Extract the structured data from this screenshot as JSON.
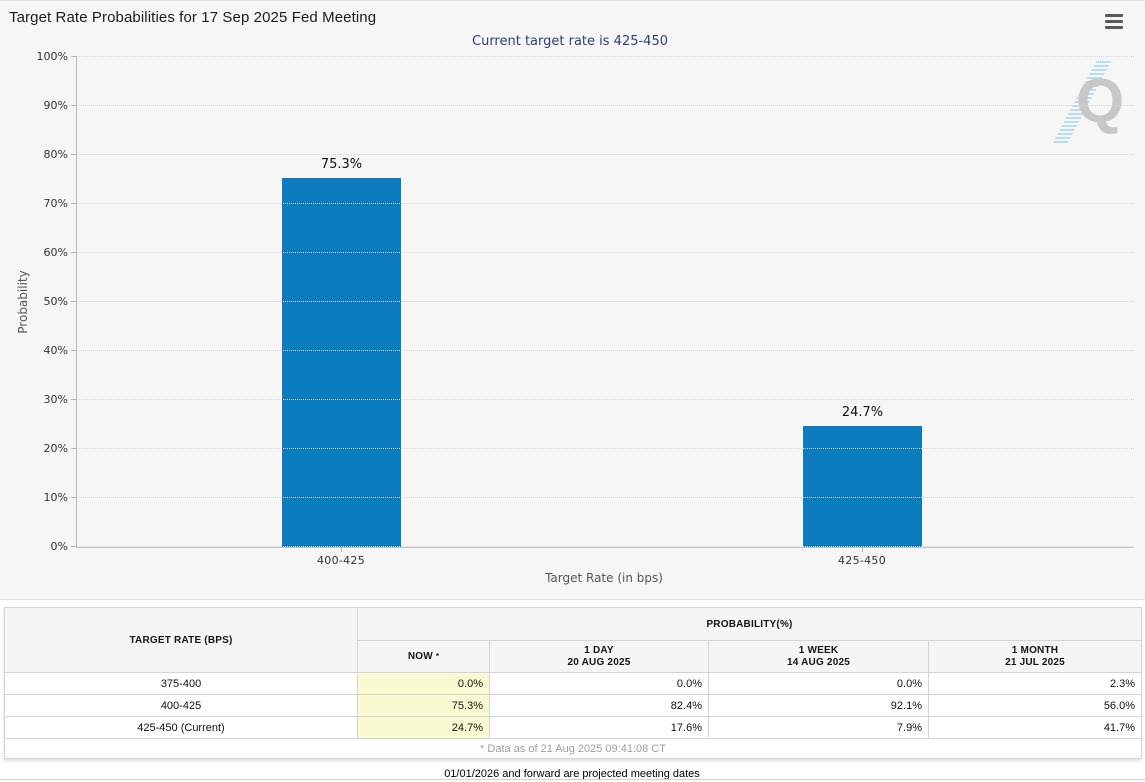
{
  "chart": {
    "title": "Target Rate Probabilities for 17 Sep 2025 Fed Meeting",
    "subtitle": "Current target rate is 425-450",
    "watermark_letter": "Q"
  },
  "chart_data": {
    "type": "bar",
    "title": "Target Rate Probabilities for 17 Sep 2025 Fed Meeting",
    "subtitle": "Current target rate is 425-450",
    "xlabel": "Target Rate (in bps)",
    "ylabel": "Probability",
    "categories": [
      "400-425",
      "425-450"
    ],
    "values": [
      75.3,
      24.7
    ],
    "labels": [
      "75.3%",
      "24.7%"
    ],
    "ylim": [
      0,
      100
    ],
    "y_ticks": [
      "0%",
      "10%",
      "20%",
      "30%",
      "40%",
      "50%",
      "60%",
      "70%",
      "80%",
      "90%",
      "100%"
    ],
    "bar_color": "#0b7dbf",
    "grid": "dotted horizontal",
    "legend": "none"
  },
  "colors": {
    "bar_blue": "#0b7dbf",
    "subtitle_navy": "#2f3f7c",
    "now_column_highlight": "#fafad2",
    "chart_background": "#f6f6f6"
  },
  "table": {
    "rate_header": "TARGET RATE (BPS)",
    "group_header": "PROBABILITY(%)",
    "now_header": "NOW",
    "now_asterisk": "*",
    "columns": [
      {
        "period": "1 DAY",
        "date": "20 AUG 2025"
      },
      {
        "period": "1 WEEK",
        "date": "14 AUG 2025"
      },
      {
        "period": "1 MONTH",
        "date": "21 JUL 2025"
      }
    ],
    "rows": [
      {
        "rate": "375-400",
        "now": "0.0%",
        "day1": "0.0%",
        "week1": "0.0%",
        "month1": "2.3%"
      },
      {
        "rate": "400-425",
        "now": "75.3%",
        "day1": "82.4%",
        "week1": "92.1%",
        "month1": "56.0%"
      },
      {
        "rate": "425-450 (Current)",
        "now": "24.7%",
        "day1": "17.6%",
        "week1": "7.9%",
        "month1": "41.7%"
      }
    ],
    "footnote": "* Data as of 21 Aug 2025 09:41:08 CT"
  },
  "footer_note": "01/01/2026 and forward are projected meeting dates"
}
